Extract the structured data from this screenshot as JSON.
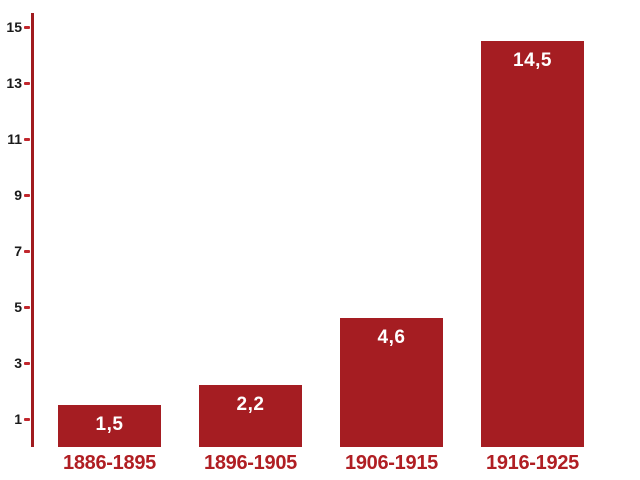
{
  "chart_data": {
    "type": "bar",
    "title": "",
    "xlabel": "",
    "ylabel": "",
    "categories": [
      "1886-1895",
      "1896-1905",
      "1906-1915",
      "1916-1925"
    ],
    "values": [
      1.5,
      2.2,
      4.6,
      14.5
    ],
    "value_labels": [
      "1,5",
      "2,2",
      "4,6",
      "14,5"
    ],
    "ylim": [
      0,
      15
    ],
    "yticks": [
      1,
      3,
      5,
      7,
      9,
      11,
      13,
      15
    ],
    "grid": false,
    "legend": null,
    "colors": {
      "bar": "#A51D22",
      "axis_line": "#A01B1F",
      "tick_dash": "#C1272D",
      "ytick_label": "#1A1A1A",
      "category_label": "#B01E23",
      "value_label": "#FFFFFF",
      "background": "#FFFFFF"
    }
  }
}
